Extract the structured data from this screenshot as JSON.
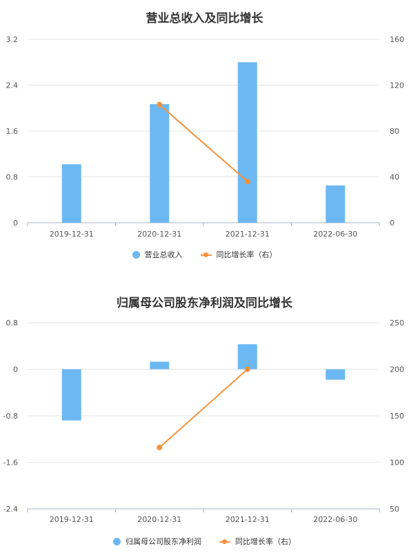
{
  "colors": {
    "bar": "#6cb8f2",
    "line": "#f5913b",
    "grid": "#e5e5e5",
    "axis": "#aab3c6",
    "tick": "#555555"
  },
  "chart_data": [
    {
      "type": "bar",
      "title": "营业总收入及同比增长",
      "categories": [
        "2019-12-31",
        "2020-12-31",
        "2021-12-31",
        "2022-06-30"
      ],
      "y_left": {
        "ticks": [
          "3.2",
          "2.4",
          "1.6",
          "0.8",
          "0"
        ],
        "ylim": [
          0,
          3.2
        ]
      },
      "y_right": {
        "ticks": [
          "160",
          "120",
          "80",
          "40",
          "0"
        ],
        "ylim": [
          0,
          160
        ]
      },
      "series": [
        {
          "name": "营业总收入",
          "type": "bar",
          "axis": "left",
          "values": [
            1.02,
            2.07,
            2.8,
            0.65
          ]
        },
        {
          "name": "同比增长率（右）",
          "type": "line",
          "axis": "right",
          "values": [
            null,
            103,
            36,
            null
          ]
        }
      ],
      "grid": true,
      "legend": "bottom"
    },
    {
      "type": "bar",
      "title": "归属母公司股东净利润及同比增长",
      "categories": [
        "2019-12-31",
        "2020-12-31",
        "2021-12-31",
        "2022-06-30"
      ],
      "y_left": {
        "ticks": [
          "0.8",
          "0",
          "-0.8",
          "-1.6",
          "-2.4"
        ],
        "ylim": [
          -2.4,
          0.8
        ]
      },
      "y_right": {
        "ticks": [
          "250",
          "200",
          "150",
          "100",
          "50"
        ],
        "ylim": [
          50,
          250
        ]
      },
      "series": [
        {
          "name": "归属母公司股东净利润",
          "type": "bar",
          "axis": "left",
          "values": [
            -0.88,
            0.13,
            0.43,
            -0.18
          ]
        },
        {
          "name": "同比增长率（右）",
          "type": "line",
          "axis": "right",
          "values": [
            null,
            116,
            200,
            null
          ]
        }
      ],
      "grid": true,
      "legend": "bottom"
    }
  ]
}
